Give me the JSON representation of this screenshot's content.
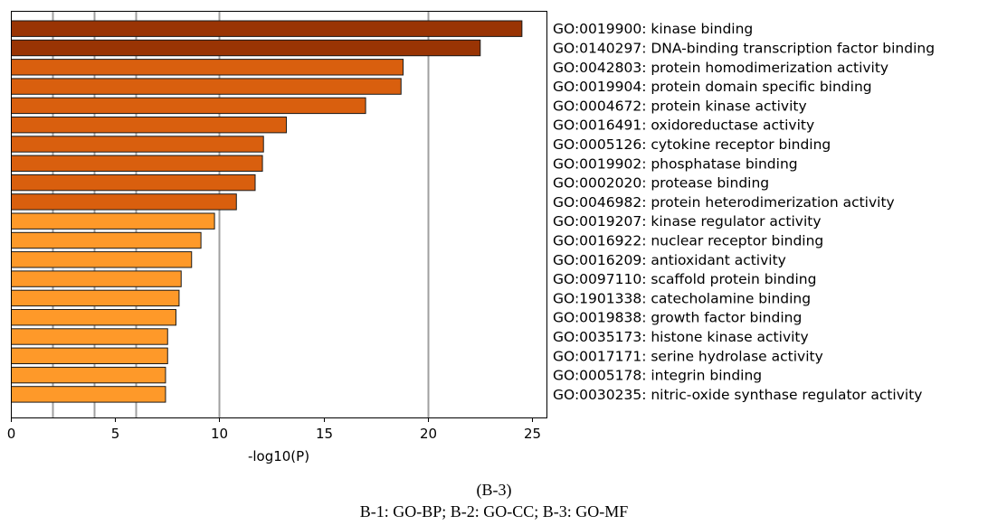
{
  "chart_data": {
    "type": "bar",
    "orientation": "horizontal",
    "categories": [
      "GO:0019900: kinase binding",
      "GO:0140297: DNA-binding transcription factor binding",
      "GO:0042803: protein homodimerization activity",
      "GO:0019904: protein domain specific binding",
      "GO:0004672: protein kinase activity",
      "GO:0016491: oxidoreductase activity",
      "GO:0005126: cytokine receptor binding",
      "GO:0019902: phosphatase binding",
      "GO:0002020: protease binding",
      "GO:0046982: protein heterodimerization activity",
      "GO:0019207: kinase regulator activity",
      "GO:0016922: nuclear receptor binding",
      "GO:0016209: antioxidant activity",
      "GO:0097110: scaffold protein binding",
      "GO:1901338: catecholamine binding",
      "GO:0019838: growth factor binding",
      "GO:0035173: histone kinase activity",
      "GO:0017171: serine hydrolase activity",
      "GO:0005178: integrin binding",
      "GO:0030235: nitric-oxide synthase regulator activity"
    ],
    "values": [
      24.5,
      22.5,
      18.8,
      18.7,
      17.0,
      13.2,
      12.1,
      12.05,
      11.7,
      10.8,
      9.75,
      9.1,
      8.65,
      8.15,
      8.05,
      7.9,
      7.5,
      7.5,
      7.4,
      7.4
    ],
    "bar_colors": [
      "#993404",
      "#993404",
      "#d95f0e",
      "#d95f0e",
      "#d95f0e",
      "#d95f0e",
      "#d95f0e",
      "#d95f0e",
      "#d95f0e",
      "#d95f0e",
      "#fe9929",
      "#fe9929",
      "#fe9929",
      "#fe9929",
      "#fe9929",
      "#fe9929",
      "#fe9929",
      "#fe9929",
      "#fe9929",
      "#fe9929"
    ],
    "xlabel": "-log10(P)",
    "xlim": [
      0,
      25.7
    ],
    "xticks": [
      0,
      5,
      10,
      15,
      20,
      25
    ],
    "gridlines_x": [
      2,
      4,
      6,
      10,
      20
    ],
    "grid_color": "#a0a0a0",
    "legend": "right"
  },
  "caption": {
    "figure_label": "(B-3)",
    "note": "B-1: GO-BP; B-2: GO-CC; B-3: GO-MF"
  }
}
